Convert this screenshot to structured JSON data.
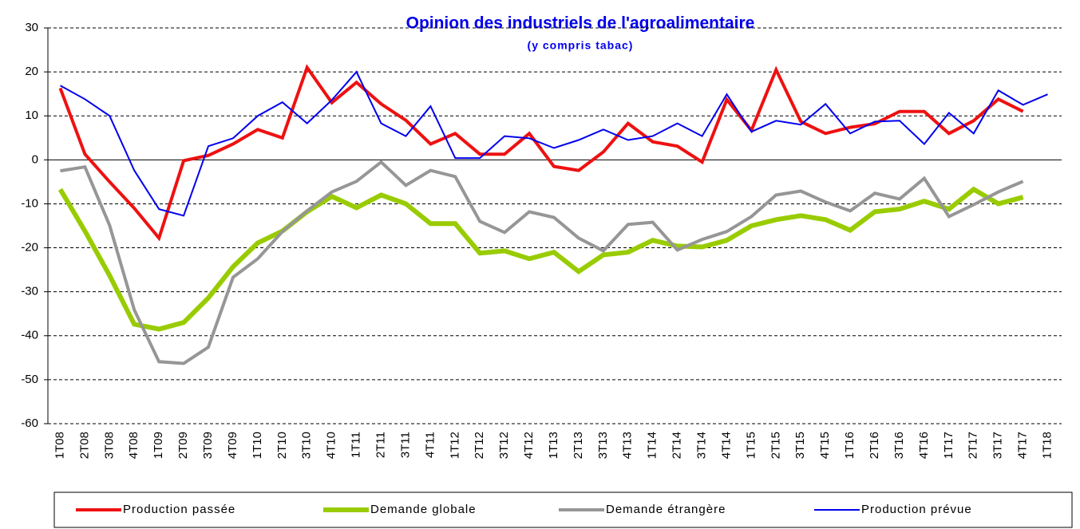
{
  "chart_data": {
    "type": "line",
    "title": "Opinion des industriels de l'agroalimentaire",
    "subtitle": "(y compris tabac)",
    "categories": [
      "1T08",
      "2T08",
      "3T08",
      "4T08",
      "1T09",
      "2T09",
      "3T09",
      "4T09",
      "1T10",
      "2T10",
      "3T10",
      "4T10",
      "1T11",
      "2T11",
      "3T11",
      "4T11",
      "1T12",
      "2T12",
      "3T12",
      "4T12",
      "1T13",
      "2T13",
      "3T13",
      "4T13",
      "1T14",
      "2T14",
      "3T14",
      "4T14",
      "1T15",
      "2T15",
      "3T15",
      "4T15",
      "1T16",
      "2T16",
      "3T16",
      "4T16",
      "1T17",
      "2T17",
      "3T17",
      "4T17",
      "1T18"
    ],
    "series": [
      {
        "name": "Production passée",
        "color": "#ee1111",
        "width": 4,
        "values": [
          16.3,
          1.3,
          -5,
          -11,
          -17.8,
          -0.2,
          1,
          3.6,
          6.9,
          5,
          21,
          13,
          17.6,
          12.7,
          9,
          3.6,
          6,
          1.3,
          1.3,
          6,
          -1.5,
          -2.4,
          1.8,
          8.3,
          4.1,
          3.1,
          -0.5,
          13.7,
          6.7,
          20.5,
          8.7,
          6,
          7.4,
          8.2,
          11,
          11,
          6,
          8.9,
          13.8,
          11,
          null
        ]
      },
      {
        "name": "Demande globale",
        "color": "#99cc00",
        "width": 6,
        "values": [
          -6.7,
          -16.2,
          -26.3,
          -37.4,
          -38.5,
          -37,
          -31.4,
          -24.3,
          -18.9,
          -16.2,
          -11.8,
          -8.3,
          -10.9,
          -8,
          -10,
          -14.5,
          -14.5,
          -21.2,
          -20.7,
          -22.5,
          -21,
          -25.4,
          -21.6,
          -21,
          -18.3,
          -19.6,
          -19.8,
          -18.3,
          -15,
          -13.6,
          -12.7,
          -13.6,
          -16,
          -11.8,
          -11.2,
          -9.4,
          -11.2,
          -6.7,
          -10,
          -8.5,
          null
        ]
      },
      {
        "name": "Demande étrangère",
        "color": "#969696",
        "width": 4,
        "values": [
          -2.5,
          -1.6,
          -14.9,
          -34.1,
          -45.9,
          -46.3,
          -42.6,
          -26.7,
          -22.5,
          -16.3,
          -11.6,
          -7.3,
          -4.9,
          -0.5,
          -5.8,
          -2.4,
          -3.8,
          -14,
          -16.5,
          -11.8,
          -13.1,
          -17.8,
          -20.7,
          -14.7,
          -14.2,
          -20.5,
          -18.1,
          -16.3,
          -12.9,
          -8,
          -7.1,
          -9.6,
          -11.6,
          -7.6,
          -8.9,
          -4.2,
          -12.9,
          -10.2,
          -7.3,
          -4.9,
          null
        ]
      },
      {
        "name": "Production prévue",
        "color": "#0000ee",
        "width": 2,
        "values": [
          16.9,
          13.8,
          10,
          -2.4,
          -11.2,
          -12.7,
          3.1,
          4.9,
          10,
          13.1,
          8.3,
          13.6,
          20,
          8.3,
          5.4,
          12.2,
          0.4,
          0.4,
          5.4,
          4.9,
          2.7,
          4.5,
          6.9,
          4.5,
          5.4,
          8.3,
          5.4,
          14.9,
          6.4,
          8.9,
          8,
          12.7,
          6,
          8.7,
          8.9,
          3.6,
          10.7,
          6,
          15.8,
          12.5,
          14.9
        ]
      }
    ],
    "ylim": [
      -60,
      30
    ],
    "yticks": [
      -60,
      -50,
      -40,
      -30,
      -20,
      -10,
      0,
      10,
      20,
      30
    ],
    "grid": true,
    "legend": "bottom"
  }
}
